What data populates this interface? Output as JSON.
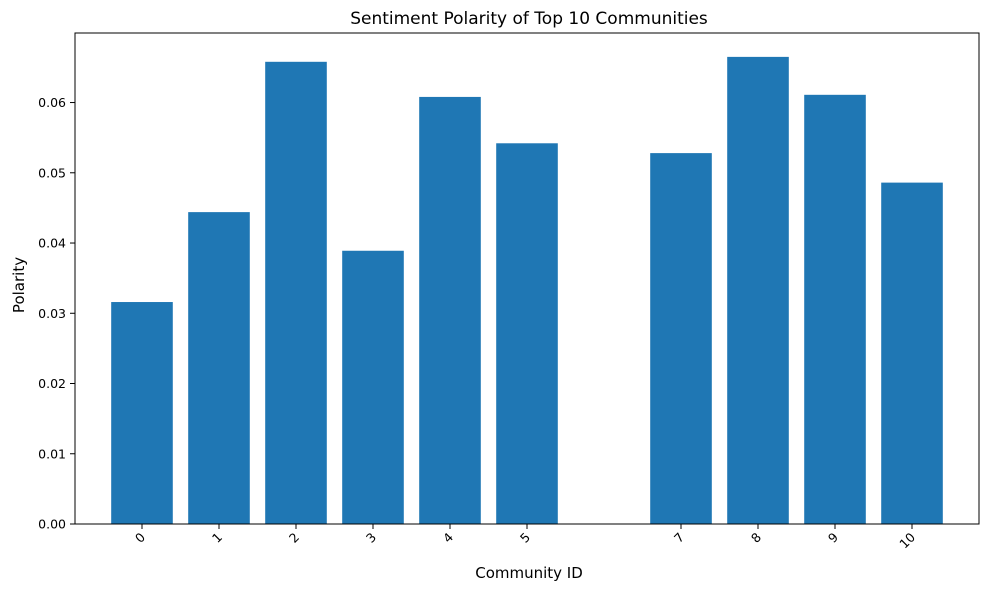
{
  "chart_data": {
    "type": "bar",
    "title": "Sentiment Polarity of Top 10 Communities",
    "xlabel": "Community ID",
    "ylabel": "Polarity",
    "x": [
      0,
      1,
      2,
      3,
      4,
      5,
      7,
      8,
      9,
      10
    ],
    "values": [
      0.0316,
      0.0444,
      0.0658,
      0.0389,
      0.0608,
      0.0542,
      0.0528,
      0.0665,
      0.0611,
      0.0486
    ],
    "xlim": [
      -0.87,
      10.87
    ],
    "ylim": [
      0,
      0.0699
    ],
    "yticks": [
      0.0,
      0.01,
      0.02,
      0.03,
      0.04,
      0.05,
      0.06
    ],
    "ytick_labels": [
      "0.00",
      "0.01",
      "0.02",
      "0.03",
      "0.04",
      "0.05",
      "0.06"
    ],
    "bar_color": "#1f77b4",
    "grid": false
  }
}
